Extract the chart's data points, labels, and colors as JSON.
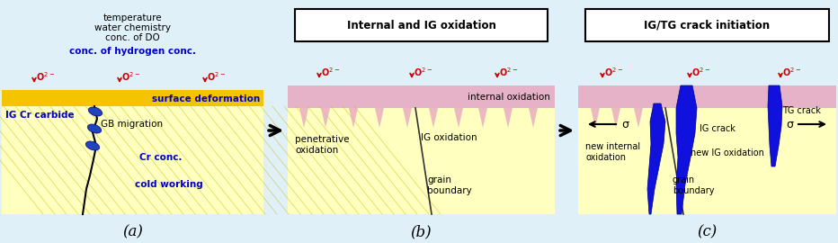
{
  "bg_color": "#dff0f8",
  "panel_bg_light": "#dff0f8",
  "gold_color": "#F5C400",
  "yellow_light": "#FFFFC0",
  "pink_color": "#E8A8C0",
  "blue_dark": "#0000CC",
  "red_color": "#CC0000",
  "black": "#000000",
  "white": "#FFFFFF",
  "labels_a_top": [
    "temperature",
    "water chemistry",
    "conc. of DO"
  ],
  "label_a_blue": "conc. of hydrogen conc.",
  "label_a_surface": "surface deformation",
  "label_a_ig": "IG Cr carbide",
  "label_a_gb": "GB migration",
  "label_a_cr": "Cr conc.",
  "label_a_cw": "cold working",
  "title_b": "Internal and IG oxidation",
  "label_b_penet": "penetrative\noxidation",
  "label_b_ig": "IG oxidation",
  "label_b_internal": "internal oxidation",
  "label_b_grain": "grain\nboundary",
  "title_c": "IG/TG crack initiation",
  "label_c_tg": "TG crack",
  "label_c_ig": "IG crack",
  "label_c_new_int": "new internal\noxidation",
  "label_c_new_ig": "new IG oxidation",
  "label_c_grain": "grain\nboundary",
  "label_a": "(a)",
  "label_b": "(b)",
  "label_c": "(c)"
}
